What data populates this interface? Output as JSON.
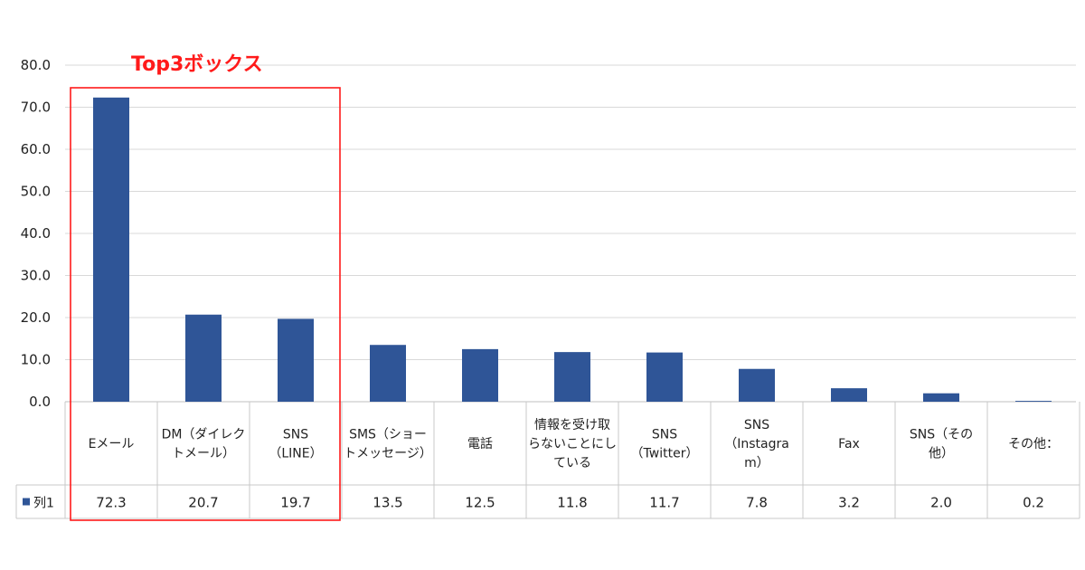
{
  "chart_data": {
    "type": "bar",
    "categories": [
      "Eメール",
      "DM（ダイレクトメール）",
      "SNS（LINE）",
      "SMS（ショートメッセージ）",
      "電話",
      "情報を受け取らないことにしている",
      "SNS（Twitter）",
      "SNS（Instagram）",
      "Fax",
      "SNS（その他）",
      "その他："
    ],
    "category_label_lines": [
      [
        "Eメール"
      ],
      [
        "DM（ダイレク",
        "トメール）"
      ],
      [
        "SNS",
        "（LINE）"
      ],
      [
        "SMS（ショー",
        "トメッセージ）"
      ],
      [
        "電話"
      ],
      [
        "情報を受け取",
        "らないことにし",
        "ている"
      ],
      [
        "SNS",
        "（Twitter）"
      ],
      [
        "SNS",
        "（Instagra",
        "m）"
      ],
      [
        "Fax"
      ],
      [
        "SNS（その",
        "他）"
      ],
      [
        "その他："
      ]
    ],
    "series": [
      {
        "name": "列1",
        "values": [
          72.3,
          20.7,
          19.7,
          13.5,
          12.5,
          11.8,
          11.7,
          7.8,
          3.2,
          2.0,
          0.2
        ],
        "value_labels": [
          "72.3",
          "20.7",
          "19.7",
          "13.5",
          "12.5",
          "11.8",
          "11.7",
          "7.8",
          "3.2",
          "2.0",
          "0.2"
        ]
      }
    ],
    "ylim": [
      0,
      80
    ],
    "yticks": [
      "0.0",
      "10.0",
      "20.0",
      "30.0",
      "40.0",
      "50.0",
      "60.0",
      "70.0",
      "80.0"
    ],
    "grid": true,
    "legend": "data-table",
    "bar_color": "#2f5597",
    "annotation": {
      "text": "Top3ボックス",
      "color": "#ff1a1a",
      "covers_categories": [
        0,
        1,
        2
      ]
    }
  }
}
